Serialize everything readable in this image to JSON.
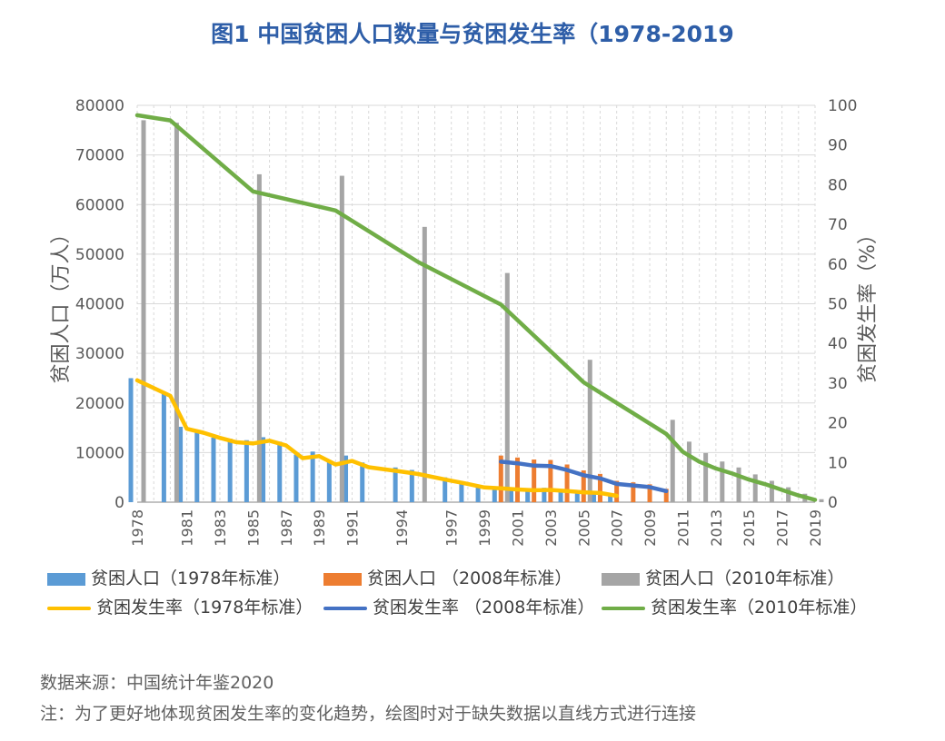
{
  "title": "图1  中国贫困人口数量与贫困发生率（1978-2019",
  "chart_data": {
    "type": "bar",
    "y_left": {
      "label": "贫困人口（万人）",
      "range": [
        0,
        80000
      ],
      "ticks": [
        "0",
        "10000",
        "20000",
        "30000",
        "40000",
        "50000",
        "60000",
        "70000",
        "80000"
      ]
    },
    "y_right": {
      "label": "贫困发生率（%）",
      "range": [
        0,
        100
      ],
      "ticks": [
        "0",
        "10",
        "20",
        "30",
        "40",
        "50",
        "60",
        "70",
        "80",
        "90",
        "100"
      ]
    },
    "x_range": [
      1978,
      2019
    ],
    "x_tick_labels": [
      "1978",
      "1981",
      "1983",
      "1985",
      "1987",
      "1989",
      "1991",
      "1994",
      "1997",
      "1999",
      "2001",
      "2003",
      "2005",
      "2007",
      "2009",
      "2011",
      "2013",
      "2015",
      "2017",
      "2019"
    ],
    "grid": true,
    "legend_placement": "bottom",
    "bar_series": [
      {
        "name": "贫困人口（1978年标准）",
        "color": "#5b9bd5",
        "points": [
          [
            1978,
            25000
          ],
          [
            1980,
            22000
          ],
          [
            1981,
            15200
          ],
          [
            1982,
            14500
          ],
          [
            1983,
            13000
          ],
          [
            1984,
            12800
          ],
          [
            1985,
            12500
          ],
          [
            1986,
            13100
          ],
          [
            1987,
            12200
          ],
          [
            1988,
            9600
          ],
          [
            1989,
            10200
          ],
          [
            1990,
            8500
          ],
          [
            1991,
            9400
          ],
          [
            1992,
            8000
          ],
          [
            1994,
            7000
          ],
          [
            1995,
            6500
          ],
          [
            1997,
            5000
          ],
          [
            1998,
            4200
          ],
          [
            1999,
            3400
          ],
          [
            2000,
            3200
          ],
          [
            2001,
            2900
          ],
          [
            2002,
            2800
          ],
          [
            2003,
            2900
          ],
          [
            2004,
            2600
          ],
          [
            2005,
            2300
          ],
          [
            2006,
            2100
          ],
          [
            2007,
            1500
          ]
        ]
      },
      {
        "name": "贫困人口 （2008年标准）",
        "color": "#ed7d31",
        "points": [
          [
            2000,
            9400
          ],
          [
            2001,
            9000
          ],
          [
            2002,
            8600
          ],
          [
            2003,
            8500
          ],
          [
            2004,
            7600
          ],
          [
            2005,
            6400
          ],
          [
            2006,
            5700
          ],
          [
            2007,
            4300
          ],
          [
            2008,
            4000
          ],
          [
            2009,
            3600
          ],
          [
            2010,
            2700
          ]
        ]
      },
      {
        "name": "贫困人口（2010年标准）",
        "color": "#a5a5a5",
        "points": [
          [
            1978,
            77000
          ],
          [
            1980,
            76500
          ],
          [
            1985,
            66100
          ],
          [
            1990,
            65800
          ],
          [
            1995,
            55500
          ],
          [
            2000,
            46200
          ],
          [
            2005,
            28700
          ],
          [
            2010,
            16600
          ],
          [
            2011,
            12200
          ],
          [
            2012,
            9900
          ],
          [
            2013,
            8200
          ],
          [
            2014,
            7000
          ],
          [
            2015,
            5600
          ],
          [
            2016,
            4300
          ],
          [
            2017,
            3000
          ],
          [
            2018,
            1700
          ],
          [
            2019,
            600
          ]
        ]
      }
    ],
    "line_series": [
      {
        "name": "贫困发生率（1978年标准）",
        "color": "#ffc000",
        "points": [
          [
            1978,
            30.7
          ],
          [
            1980,
            26.8
          ],
          [
            1981,
            18.5
          ],
          [
            1982,
            17.5
          ],
          [
            1983,
            16.2
          ],
          [
            1984,
            15.1
          ],
          [
            1985,
            14.8
          ],
          [
            1986,
            15.5
          ],
          [
            1987,
            14.3
          ],
          [
            1988,
            11.1
          ],
          [
            1989,
            11.6
          ],
          [
            1990,
            9.5
          ],
          [
            1991,
            10.4
          ],
          [
            1992,
            8.8
          ],
          [
            1994,
            7.7
          ],
          [
            1995,
            7.1
          ],
          [
            1997,
            5.4
          ],
          [
            1998,
            4.6
          ],
          [
            1999,
            3.7
          ],
          [
            2000,
            3.5
          ],
          [
            2001,
            3.2
          ],
          [
            2002,
            3.0
          ],
          [
            2003,
            3.1
          ],
          [
            2004,
            2.8
          ],
          [
            2005,
            2.5
          ],
          [
            2006,
            2.3
          ],
          [
            2007,
            1.6
          ]
        ]
      },
      {
        "name": "贫困发生率 （2008年标准）",
        "color": "#4472c4",
        "points": [
          [
            2000,
            10.2
          ],
          [
            2001,
            9.8
          ],
          [
            2002,
            9.2
          ],
          [
            2003,
            9.1
          ],
          [
            2004,
            8.1
          ],
          [
            2005,
            6.8
          ],
          [
            2006,
            6.0
          ],
          [
            2007,
            4.6
          ],
          [
            2008,
            4.2
          ],
          [
            2009,
            3.8
          ],
          [
            2010,
            2.8
          ]
        ]
      },
      {
        "name": "贫困发生率（2010年标准）",
        "color": "#70ad47",
        "points": [
          [
            1978,
            97.5
          ],
          [
            1980,
            96.2
          ],
          [
            1985,
            78.3
          ],
          [
            1990,
            73.5
          ],
          [
            1995,
            60.5
          ],
          [
            2000,
            49.8
          ],
          [
            2005,
            30.2
          ],
          [
            2010,
            17.2
          ],
          [
            2011,
            12.7
          ],
          [
            2012,
            10.2
          ],
          [
            2013,
            8.5
          ],
          [
            2014,
            7.2
          ],
          [
            2015,
            5.7
          ],
          [
            2016,
            4.5
          ],
          [
            2017,
            3.1
          ],
          [
            2018,
            1.7
          ],
          [
            2019,
            0.6
          ]
        ]
      }
    ]
  },
  "notes": {
    "source": "数据来源：中国统计年鉴2020",
    "note": "注：为了更好地体现贫困发生率的变化趋势，绘图时对于缺失数据以直线方式进行连接"
  }
}
